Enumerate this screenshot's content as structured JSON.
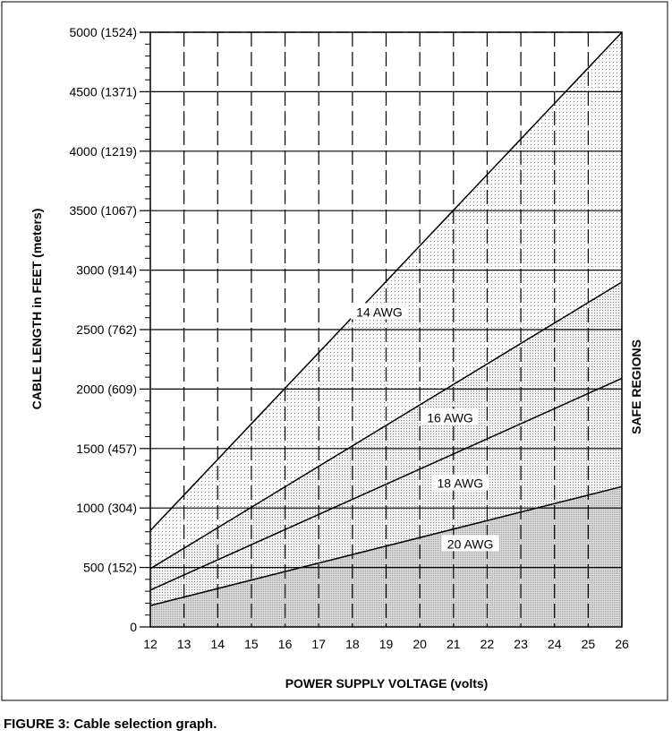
{
  "chart_data": {
    "type": "line",
    "xlabel": "POWER  SUPPLY VOLTAGE  (volts)",
    "ylabel": "CABLE  LENGTH  in  FEET  (meters)",
    "right_label": "SAFE  REGIONS",
    "xlim": [
      12,
      26
    ],
    "ylim": [
      0,
      5000
    ],
    "x_ticks": [
      "12",
      "13",
      "14",
      "15",
      "16",
      "17",
      "18",
      "19",
      "20",
      "21",
      "22",
      "23",
      "24",
      "25",
      "26"
    ],
    "y_ticks": [
      {
        "value": 0,
        "label": "0"
      },
      {
        "value": 500,
        "label": "500 (152)"
      },
      {
        "value": 1000,
        "label": "1000 (304)"
      },
      {
        "value": 1500,
        "label": "1500 (457)"
      },
      {
        "value": 2000,
        "label": "2000 (609)"
      },
      {
        "value": 2500,
        "label": "2500 (762)"
      },
      {
        "value": 3000,
        "label": "3000 (914)"
      },
      {
        "value": 3500,
        "label": "3500 (1067)"
      },
      {
        "value": 4000,
        "label": "4000 (1219)"
      },
      {
        "value": 4500,
        "label": "4500 (1371)"
      },
      {
        "value": 5000,
        "label": "5000 (1524)"
      }
    ],
    "grid": true,
    "series": [
      {
        "name": "14 AWG",
        "x": [
          12,
          26
        ],
        "y": [
          810,
          5010
        ],
        "label_at": [
          18.8,
          2640
        ]
      },
      {
        "name": "16 AWG",
        "x": [
          12,
          26
        ],
        "y": [
          490,
          2900
        ],
        "label_at": [
          20.9,
          1750
        ]
      },
      {
        "name": "18 AWG",
        "x": [
          12,
          26
        ],
        "y": [
          310,
          2090
        ],
        "label_at": [
          21.2,
          1200
        ]
      },
      {
        "name": "20 AWG",
        "x": [
          12,
          26
        ],
        "y": [
          180,
          1180
        ],
        "label_at": [
          21.5,
          690
        ]
      }
    ]
  },
  "caption": "FIGURE 3: Cable selection graph."
}
